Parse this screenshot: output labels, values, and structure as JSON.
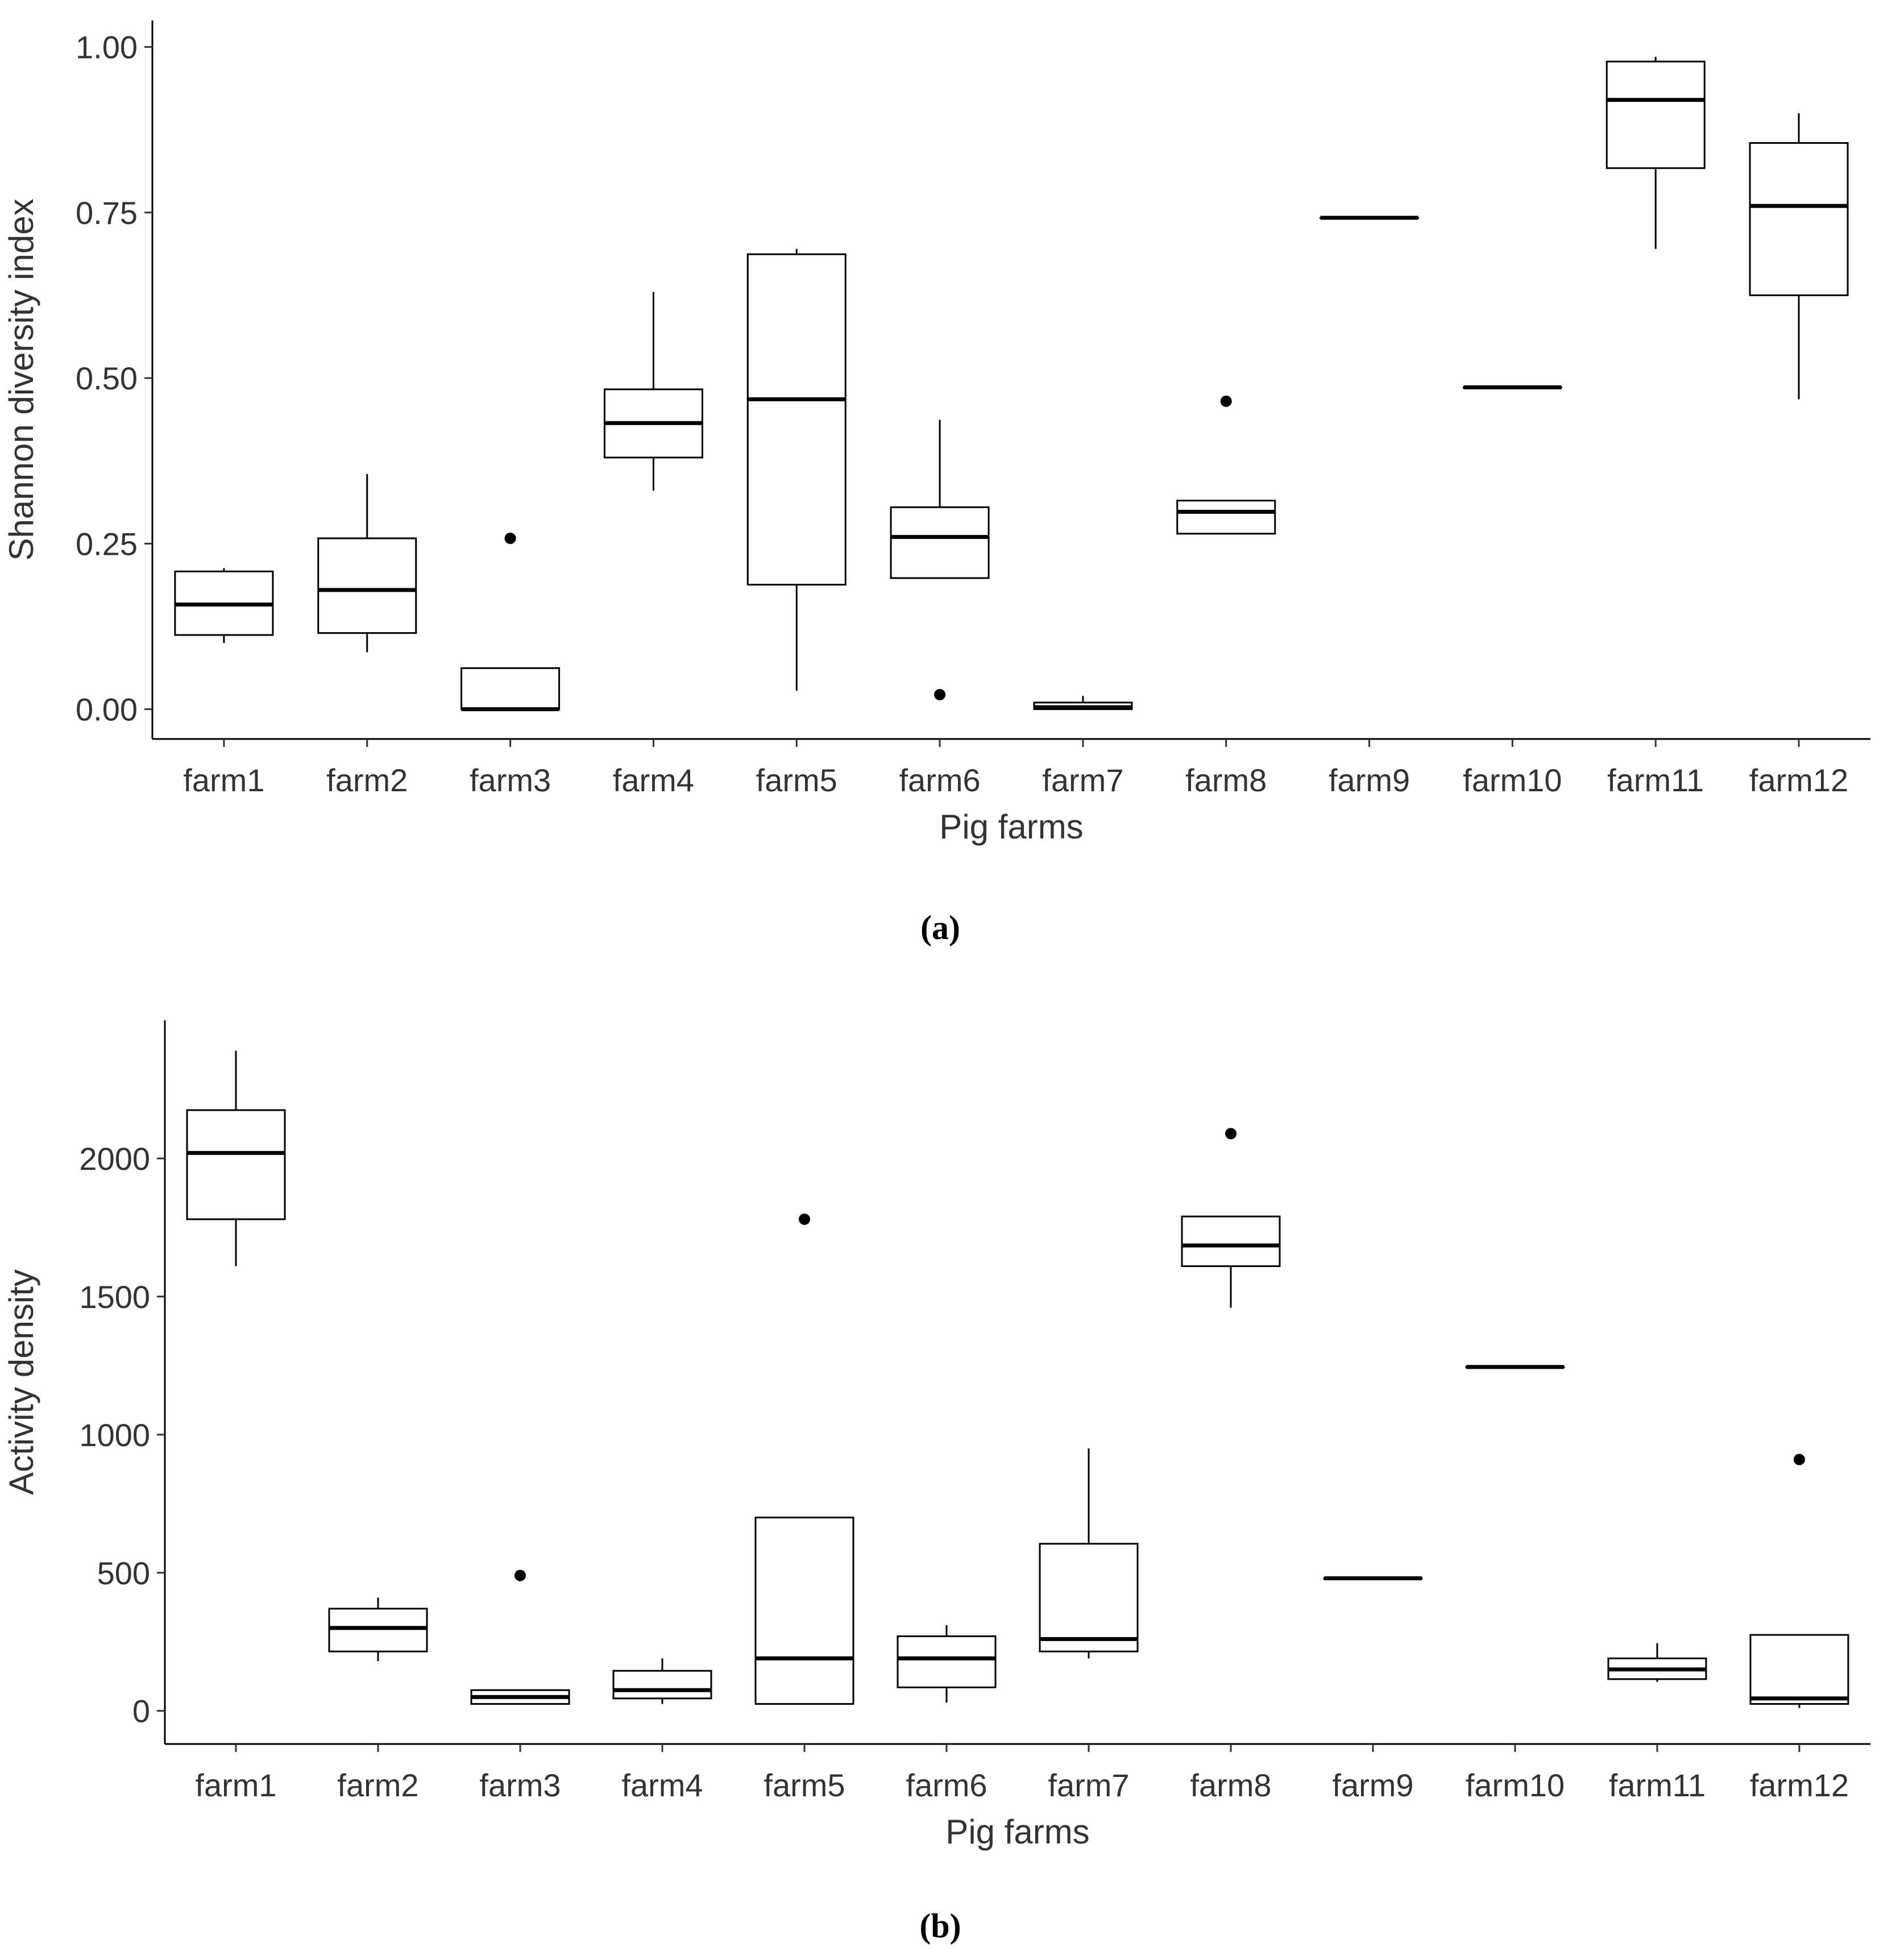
{
  "chart_data": [
    {
      "type": "boxplot",
      "caption": "(a)",
      "xlabel": "Pig farms",
      "ylabel": "Shannon diversity index",
      "ylim": [
        -0.045,
        1.04
      ],
      "yticks": [
        0,
        0.25,
        0.5,
        0.75,
        1
      ],
      "ytick_labels": [
        "0.00",
        "0.25",
        "0.50",
        "0.75",
        "1.00"
      ],
      "categories": [
        "farm1",
        "farm2",
        "farm3",
        "farm4",
        "farm5",
        "farm6",
        "farm7",
        "farm8",
        "farm9",
        "farm10",
        "farm11",
        "farm12"
      ],
      "boxes": [
        {
          "whislo": 0.1,
          "q1": 0.112,
          "med": 0.158,
          "q3": 0.208,
          "whishi": 0.213,
          "fliers": []
        },
        {
          "whislo": 0.086,
          "q1": 0.115,
          "med": 0.18,
          "q3": 0.258,
          "whishi": 0.355,
          "fliers": []
        },
        {
          "whislo": 0.0,
          "q1": 0.0,
          "med": 0.0,
          "q3": 0.062,
          "whishi": 0.062,
          "fliers": [
            0.258
          ]
        },
        {
          "whislo": 0.33,
          "q1": 0.38,
          "med": 0.432,
          "q3": 0.483,
          "whishi": 0.63,
          "fliers": []
        },
        {
          "whislo": 0.028,
          "q1": 0.188,
          "med": 0.468,
          "q3": 0.687,
          "whishi": 0.695,
          "fliers": []
        },
        {
          "whislo": 0.198,
          "q1": 0.198,
          "med": 0.26,
          "q3": 0.305,
          "whishi": 0.437,
          "fliers": [
            0.022
          ]
        },
        {
          "whislo": 0.0,
          "q1": 0.0,
          "med": 0.003,
          "q3": 0.01,
          "whishi": 0.02,
          "fliers": []
        },
        {
          "whislo": 0.265,
          "q1": 0.265,
          "med": 0.298,
          "q3": 0.315,
          "whishi": 0.315,
          "fliers": [
            0.465
          ]
        },
        {
          "whislo": 0.742,
          "q1": 0.742,
          "med": 0.742,
          "q3": 0.742,
          "whishi": 0.742,
          "fliers": []
        },
        {
          "whislo": 0.486,
          "q1": 0.486,
          "med": 0.486,
          "q3": 0.486,
          "whishi": 0.486,
          "fliers": []
        },
        {
          "whislo": 0.695,
          "q1": 0.817,
          "med": 0.92,
          "q3": 0.978,
          "whishi": 0.985,
          "fliers": []
        },
        {
          "whislo": 0.468,
          "q1": 0.625,
          "med": 0.76,
          "q3": 0.855,
          "whishi": 0.9,
          "fliers": []
        }
      ]
    },
    {
      "type": "boxplot",
      "caption": "(b)",
      "xlabel": "Pig farms",
      "ylabel": "Activity density",
      "ylim": [
        -120,
        2500
      ],
      "yticks": [
        0,
        500,
        1000,
        1500,
        2000
      ],
      "ytick_labels": [
        "0",
        "500",
        "1000",
        "1500",
        "2000"
      ],
      "categories": [
        "farm1",
        "farm2",
        "farm3",
        "farm4",
        "farm5",
        "farm6",
        "farm7",
        "farm8",
        "farm9",
        "farm10",
        "farm11",
        "farm12"
      ],
      "boxes": [
        {
          "whislo": 1610,
          "q1": 1780,
          "med": 2020,
          "q3": 2175,
          "whishi": 2390,
          "fliers": []
        },
        {
          "whislo": 180,
          "q1": 215,
          "med": 300,
          "q3": 370,
          "whishi": 410,
          "fliers": []
        },
        {
          "whislo": 25,
          "q1": 25,
          "med": 50,
          "q3": 75,
          "whishi": 75,
          "fliers": [
            490
          ]
        },
        {
          "whislo": 25,
          "q1": 45,
          "med": 75,
          "q3": 145,
          "whishi": 190,
          "fliers": []
        },
        {
          "whislo": 25,
          "q1": 25,
          "med": 190,
          "q3": 700,
          "whishi": 700,
          "fliers": [
            1780
          ]
        },
        {
          "whislo": 30,
          "q1": 85,
          "med": 190,
          "q3": 270,
          "whishi": 310,
          "fliers": []
        },
        {
          "whislo": 190,
          "q1": 215,
          "med": 260,
          "q3": 605,
          "whishi": 950,
          "fliers": []
        },
        {
          "whislo": 1460,
          "q1": 1610,
          "med": 1685,
          "q3": 1790,
          "whishi": 1790,
          "fliers": [
            2090
          ]
        },
        {
          "whislo": 480,
          "q1": 480,
          "med": 480,
          "q3": 480,
          "whishi": 480,
          "fliers": []
        },
        {
          "whislo": 1245,
          "q1": 1245,
          "med": 1245,
          "q3": 1245,
          "whishi": 1245,
          "fliers": []
        },
        {
          "whislo": 105,
          "q1": 115,
          "med": 150,
          "q3": 190,
          "whishi": 245,
          "fliers": []
        },
        {
          "whislo": 10,
          "q1": 25,
          "med": 45,
          "q3": 275,
          "whishi": 275,
          "fliers": [
            910
          ]
        }
      ]
    }
  ]
}
